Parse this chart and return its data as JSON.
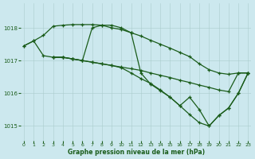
{
  "title": "Graphe pression niveau de la mer (hPa)",
  "bg_color": "#cce8ee",
  "grid_color": "#aacccc",
  "line_color": "#1a5c1a",
  "xlim": [
    -0.3,
    23.3
  ],
  "ylim": [
    1014.55,
    1018.75
  ],
  "yticks": [
    1015,
    1016,
    1017,
    1018
  ],
  "xticks": [
    0,
    1,
    2,
    3,
    4,
    5,
    6,
    7,
    8,
    9,
    10,
    11,
    12,
    13,
    14,
    15,
    16,
    17,
    18,
    19,
    20,
    21,
    22,
    23
  ],
  "line_A_x": [
    0,
    1,
    2,
    3,
    4,
    5,
    6,
    7,
    8,
    9,
    10,
    11,
    12,
    13,
    14,
    15,
    16,
    17,
    18,
    19,
    20,
    21,
    22,
    23
  ],
  "line_A_y": [
    1017.45,
    1017.6,
    1017.77,
    1018.05,
    1018.08,
    1018.1,
    1018.1,
    1018.1,
    1018.08,
    1018.0,
    1017.95,
    1017.85,
    1017.75,
    1017.62,
    1017.5,
    1017.38,
    1017.25,
    1017.12,
    1016.9,
    1016.72,
    1016.62,
    1016.58,
    1016.62,
    1016.62
  ],
  "line_B_x": [
    0,
    1,
    2,
    3,
    4,
    5,
    6,
    7,
    8,
    9,
    10,
    11,
    12,
    13,
    14,
    15,
    16,
    17,
    18,
    19,
    20,
    21,
    22,
    23
  ],
  "line_B_y": [
    1017.45,
    1017.6,
    1017.15,
    1017.1,
    1017.1,
    1017.05,
    1017.0,
    1016.95,
    1016.9,
    1016.85,
    1016.8,
    1016.75,
    1016.7,
    1016.62,
    1016.55,
    1016.48,
    1016.4,
    1016.33,
    1016.25,
    1016.18,
    1016.1,
    1016.05,
    1016.62,
    1016.62
  ],
  "line_C_x": [
    3,
    4,
    5,
    6,
    7,
    8,
    9,
    10,
    11,
    12,
    13,
    14,
    15,
    16,
    17,
    18,
    19,
    20,
    21,
    22,
    23
  ],
  "line_C_y": [
    1017.1,
    1017.1,
    1017.05,
    1017.0,
    1016.95,
    1016.9,
    1016.85,
    1016.78,
    1016.62,
    1016.45,
    1016.3,
    1016.1,
    1015.88,
    1015.62,
    1015.35,
    1015.1,
    1015.0,
    1015.32,
    1015.55,
    1016.0,
    1016.62
  ],
  "line_D_x": [
    3,
    4,
    5,
    6,
    7,
    8,
    9,
    10,
    11,
    12,
    13,
    14,
    15,
    16,
    17,
    18,
    19,
    20,
    21,
    22,
    23
  ],
  "line_D_y": [
    1017.1,
    1017.1,
    1017.05,
    1017.0,
    1018.0,
    1018.08,
    1018.08,
    1018.0,
    1017.85,
    1016.62,
    1016.28,
    1016.08,
    1015.88,
    1015.62,
    1015.88,
    1015.5,
    1015.0,
    1015.32,
    1015.55,
    1016.0,
    1016.62
  ]
}
